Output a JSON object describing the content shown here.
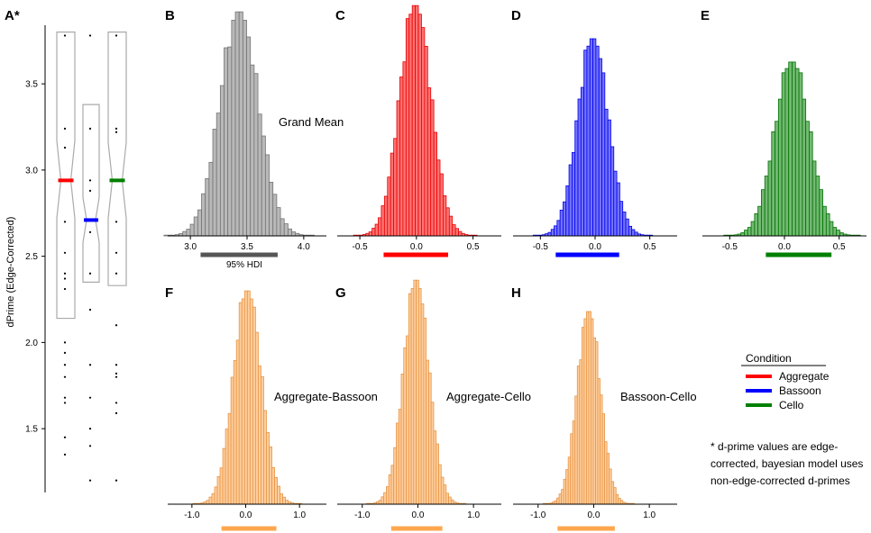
{
  "chart_data": [
    {
      "id": "A",
      "label": "A*",
      "type": "boxplot",
      "ylabel": "dPrime (Edge-Corrected)",
      "ylim": [
        1.13,
        3.84
      ],
      "yticks": [
        "1.5",
        "2.0",
        "2.5",
        "3.0",
        "3.5"
      ],
      "series": [
        {
          "name": "Aggregate",
          "color": "#ff0000",
          "q1": 2.14,
          "median": 2.94,
          "q3": 3.8,
          "notch_low": 2.72,
          "notch_high": 3.17,
          "points": [
            3.78,
            3.24,
            3.13,
            2.94,
            2.7,
            2.52,
            2.4,
            2.37,
            2.31,
            2.0,
            1.94,
            1.87,
            1.8,
            1.68,
            1.65,
            1.45,
            1.35
          ]
        },
        {
          "name": "Bassoon",
          "color": "#0000ff",
          "q1": 2.35,
          "median": 2.71,
          "q3": 3.38,
          "notch_low": 2.58,
          "notch_high": 2.84,
          "points": [
            3.78,
            3.24,
            2.94,
            2.88,
            2.64,
            2.4,
            2.19,
            1.87,
            1.68,
            1.5,
            1.4,
            1.2
          ]
        },
        {
          "name": "Cello",
          "color": "#007f00",
          "q1": 2.33,
          "median": 2.94,
          "q3": 3.8,
          "notch_low": 2.72,
          "notch_high": 3.16,
          "points": [
            3.78,
            3.24,
            3.22,
            2.94,
            2.7,
            2.52,
            2.4,
            2.1,
            1.87,
            1.82,
            1.8,
            1.65,
            1.59,
            1.2
          ]
        }
      ]
    },
    {
      "id": "B",
      "label": "B",
      "type": "histogram",
      "color": "#808080",
      "annotation": "Grand Mean",
      "hdi_label": "95% HDI",
      "mean": 3.43,
      "sd": 0.17,
      "xlim": [
        2.8,
        4.2
      ],
      "xticks": [
        3.0,
        3.5,
        4.0
      ],
      "xtick_labels": [
        "3.0",
        "3.5",
        "4.0"
      ],
      "hdi": [
        3.09,
        3.77
      ]
    },
    {
      "id": "C",
      "label": "C",
      "type": "histogram",
      "color": "#ff0000",
      "mean": -0.01,
      "sd": 0.14,
      "xlim": [
        -0.7,
        0.75
      ],
      "xticks": [
        -0.5,
        0.0,
        0.5
      ],
      "xtick_labels": [
        "-0.5",
        "0.0",
        "0.5"
      ],
      "hdi": [
        -0.29,
        0.28
      ]
    },
    {
      "id": "D",
      "label": "D",
      "type": "histogram",
      "color": "#0000ff",
      "mean": -0.02,
      "sd": 0.14,
      "xlim": [
        -0.75,
        0.75
      ],
      "xticks": [
        -0.5,
        0.0,
        0.5
      ],
      "xtick_labels": [
        "-0.5",
        "0.0",
        "0.5"
      ],
      "hdi": [
        -0.36,
        0.22
      ]
    },
    {
      "id": "E",
      "label": "E",
      "type": "histogram",
      "color": "#007f00",
      "mean": 0.07,
      "sd": 0.16,
      "xlim": [
        -0.75,
        0.75
      ],
      "xticks": [
        -0.5,
        0.0,
        0.5
      ],
      "xtick_labels": [
        "-0.5",
        "0.0",
        "0.5"
      ],
      "hdi": [
        -0.17,
        0.43
      ]
    },
    {
      "id": "F",
      "label": "F",
      "type": "histogram",
      "color": "#ffa64d",
      "annotation": "Aggregate-Bassoon",
      "mean": 0.03,
      "sd": 0.26,
      "xlim": [
        -1.45,
        1.5
      ],
      "xticks": [
        -1.0,
        0.0,
        1.0
      ],
      "xtick_labels": [
        "-1.0",
        "0.0",
        "1.0"
      ],
      "hdi": [
        -0.45,
        0.57
      ]
    },
    {
      "id": "G",
      "label": "G",
      "type": "histogram",
      "color": "#ffa64d",
      "annotation": "Aggregate-Cello",
      "mean": -0.03,
      "sd": 0.23,
      "xlim": [
        -1.45,
        1.5
      ],
      "xticks": [
        -1.0,
        0.0,
        1.0
      ],
      "xtick_labels": [
        "-1.0",
        "0.0",
        "1.0"
      ],
      "hdi": [
        -0.48,
        0.44
      ]
    },
    {
      "id": "H",
      "label": "H",
      "type": "histogram",
      "color": "#ffa64d",
      "annotation": "Bassoon-Cello",
      "mean": -0.09,
      "sd": 0.21,
      "xlim": [
        -1.45,
        1.5
      ],
      "xticks": [
        -1.0,
        0.0,
        1.0
      ],
      "xtick_labels": [
        "-1.0",
        "0.0",
        "1.0"
      ],
      "hdi": [
        -0.65,
        0.38
      ]
    }
  ],
  "legend": {
    "title": "Condition",
    "items": [
      {
        "label": "Aggregate",
        "color": "#ff0000"
      },
      {
        "label": "Bassoon",
        "color": "#0000ff"
      },
      {
        "label": "Cello",
        "color": "#007f00"
      }
    ]
  },
  "footnote": [
    "* d-prime values are edge-",
    "corrected, bayesian model uses",
    "non-edge-corrected d-primes"
  ]
}
